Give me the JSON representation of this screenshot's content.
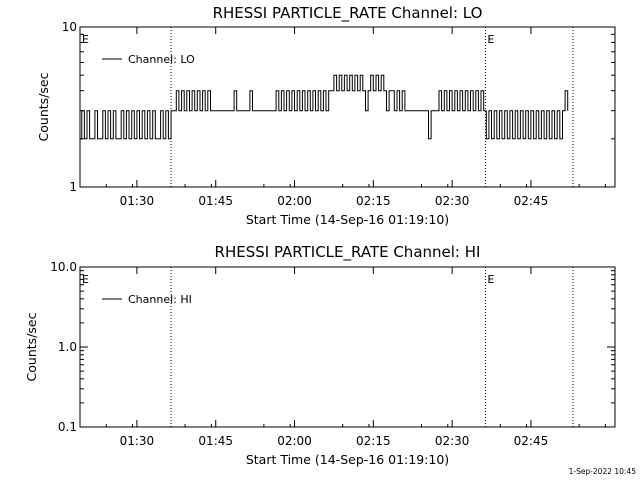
{
  "footer": {
    "timestamp": "1-Sep-2022 10:45"
  },
  "event_marker_label": "E",
  "chart_data": [
    {
      "type": "line",
      "title": "RHESSI PARTICLE_RATE Channel: LO",
      "xlabel": "Start Time (14-Sep-16 01:19:10)",
      "ylabel": "Counts/sec",
      "y_scale": "log",
      "xlim": [
        "01:19:10",
        "03:01:00"
      ],
      "ylim": [
        1,
        10
      ],
      "xticks": [
        "01:30",
        "01:45",
        "02:00",
        "02:15",
        "02:30",
        "02:45"
      ],
      "yticks": [
        {
          "value": 1,
          "label": "1"
        },
        {
          "value": 10,
          "label": "10"
        }
      ],
      "event_markers": [
        "01:36:30",
        "02:36:20",
        "02:53:00"
      ],
      "legend": {
        "position": "top-left",
        "entries": [
          "Channel: LO"
        ]
      },
      "series": [
        {
          "name": "Channel: LO",
          "points": [
            [
              "01:19:10",
              2
            ],
            [
              "01:19:30",
              3
            ],
            [
              "01:20:00",
              2
            ],
            [
              "01:20:30",
              3
            ],
            [
              "01:21:00",
              2
            ],
            [
              "01:21:30",
              2
            ],
            [
              "01:22:00",
              3
            ],
            [
              "01:22:30",
              2
            ],
            [
              "01:23:00",
              2
            ],
            [
              "01:23:30",
              3
            ],
            [
              "01:24:00",
              2
            ],
            [
              "01:24:30",
              3
            ],
            [
              "01:25:00",
              2
            ],
            [
              "01:25:30",
              3
            ],
            [
              "01:26:00",
              2
            ],
            [
              "01:26:30",
              2
            ],
            [
              "01:27:00",
              3
            ],
            [
              "01:27:30",
              2
            ],
            [
              "01:28:00",
              3
            ],
            [
              "01:28:30",
              2
            ],
            [
              "01:29:00",
              3
            ],
            [
              "01:29:30",
              2
            ],
            [
              "01:30:00",
              3
            ],
            [
              "01:30:30",
              2
            ],
            [
              "01:31:00",
              3
            ],
            [
              "01:31:30",
              2
            ],
            [
              "01:32:00",
              3
            ],
            [
              "01:32:30",
              2
            ],
            [
              "01:33:00",
              3
            ],
            [
              "01:33:30",
              2
            ],
            [
              "01:34:00",
              2
            ],
            [
              "01:34:30",
              3
            ],
            [
              "01:35:00",
              2
            ],
            [
              "01:35:30",
              3
            ],
            [
              "01:36:00",
              2
            ],
            [
              "01:36:30",
              3
            ],
            [
              "01:37:00",
              3
            ],
            [
              "01:37:30",
              4
            ],
            [
              "01:38:00",
              3
            ],
            [
              "01:38:30",
              4
            ],
            [
              "01:39:00",
              3
            ],
            [
              "01:39:30",
              4
            ],
            [
              "01:40:00",
              3
            ],
            [
              "01:40:30",
              4
            ],
            [
              "01:41:00",
              3
            ],
            [
              "01:41:30",
              4
            ],
            [
              "01:42:00",
              3
            ],
            [
              "01:42:30",
              4
            ],
            [
              "01:43:00",
              3
            ],
            [
              "01:43:30",
              4
            ],
            [
              "01:44:00",
              3
            ],
            [
              "01:45:00",
              3
            ],
            [
              "01:46:00",
              3
            ],
            [
              "01:47:00",
              3
            ],
            [
              "01:48:00",
              3
            ],
            [
              "01:48:30",
              4
            ],
            [
              "01:49:00",
              3
            ],
            [
              "01:50:00",
              3
            ],
            [
              "01:51:00",
              3
            ],
            [
              "01:51:30",
              4
            ],
            [
              "01:52:00",
              3
            ],
            [
              "01:53:00",
              3
            ],
            [
              "01:54:00",
              3
            ],
            [
              "01:55:00",
              3
            ],
            [
              "01:56:00",
              3
            ],
            [
              "01:56:30",
              4
            ],
            [
              "01:57:00",
              3
            ],
            [
              "01:57:30",
              4
            ],
            [
              "01:58:00",
              3
            ],
            [
              "01:58:30",
              4
            ],
            [
              "01:59:00",
              3
            ],
            [
              "01:59:30",
              4
            ],
            [
              "02:00:00",
              3
            ],
            [
              "02:00:30",
              4
            ],
            [
              "02:01:00",
              3
            ],
            [
              "02:01:30",
              4
            ],
            [
              "02:02:00",
              3
            ],
            [
              "02:02:30",
              4
            ],
            [
              "02:03:00",
              3
            ],
            [
              "02:03:30",
              4
            ],
            [
              "02:04:00",
              3
            ],
            [
              "02:04:30",
              4
            ],
            [
              "02:05:00",
              3
            ],
            [
              "02:05:30",
              4
            ],
            [
              "02:06:00",
              3
            ],
            [
              "02:06:30",
              4
            ],
            [
              "02:07:00",
              4
            ],
            [
              "02:07:30",
              5
            ],
            [
              "02:08:00",
              4
            ],
            [
              "02:08:30",
              5
            ],
            [
              "02:09:00",
              4
            ],
            [
              "02:09:30",
              5
            ],
            [
              "02:10:00",
              4
            ],
            [
              "02:10:30",
              5
            ],
            [
              "02:11:00",
              4
            ],
            [
              "02:11:30",
              5
            ],
            [
              "02:12:00",
              4
            ],
            [
              "02:12:30",
              5
            ],
            [
              "02:13:00",
              4
            ],
            [
              "02:13:30",
              3
            ],
            [
              "02:14:00",
              4
            ],
            [
              "02:14:30",
              5
            ],
            [
              "02:15:00",
              4
            ],
            [
              "02:15:30",
              5
            ],
            [
              "02:16:00",
              4
            ],
            [
              "02:16:30",
              5
            ],
            [
              "02:17:00",
              4
            ],
            [
              "02:17:30",
              3
            ],
            [
              "02:18:00",
              4
            ],
            [
              "02:18:30",
              4
            ],
            [
              "02:19:00",
              3
            ],
            [
              "02:19:30",
              4
            ],
            [
              "02:20:00",
              3
            ],
            [
              "02:20:30",
              4
            ],
            [
              "02:21:00",
              3
            ],
            [
              "02:22:00",
              3
            ],
            [
              "02:23:00",
              3
            ],
            [
              "02:24:00",
              3
            ],
            [
              "02:25:00",
              3
            ],
            [
              "02:25:30",
              2
            ],
            [
              "02:26:00",
              3
            ],
            [
              "02:27:00",
              3
            ],
            [
              "02:27:30",
              4
            ],
            [
              "02:28:00",
              3
            ],
            [
              "02:28:30",
              4
            ],
            [
              "02:29:00",
              3
            ],
            [
              "02:29:30",
              4
            ],
            [
              "02:30:00",
              3
            ],
            [
              "02:30:30",
              4
            ],
            [
              "02:31:00",
              3
            ],
            [
              "02:31:30",
              4
            ],
            [
              "02:32:00",
              3
            ],
            [
              "02:32:30",
              4
            ],
            [
              "02:33:00",
              3
            ],
            [
              "02:33:30",
              4
            ],
            [
              "02:34:00",
              3
            ],
            [
              "02:34:30",
              4
            ],
            [
              "02:35:00",
              3
            ],
            [
              "02:35:30",
              4
            ],
            [
              "02:36:00",
              3
            ],
            [
              "02:36:30",
              2
            ],
            [
              "02:37:00",
              3
            ],
            [
              "02:37:30",
              2
            ],
            [
              "02:38:00",
              3
            ],
            [
              "02:38:30",
              2
            ],
            [
              "02:39:00",
              3
            ],
            [
              "02:39:30",
              2
            ],
            [
              "02:40:00",
              3
            ],
            [
              "02:40:30",
              2
            ],
            [
              "02:41:00",
              3
            ],
            [
              "02:41:30",
              2
            ],
            [
              "02:42:00",
              3
            ],
            [
              "02:42:30",
              2
            ],
            [
              "02:43:00",
              3
            ],
            [
              "02:43:30",
              2
            ],
            [
              "02:44:00",
              3
            ],
            [
              "02:44:30",
              2
            ],
            [
              "02:45:00",
              3
            ],
            [
              "02:45:30",
              2
            ],
            [
              "02:46:00",
              3
            ],
            [
              "02:46:30",
              2
            ],
            [
              "02:47:00",
              3
            ],
            [
              "02:47:30",
              2
            ],
            [
              "02:48:00",
              3
            ],
            [
              "02:48:30",
              2
            ],
            [
              "02:49:00",
              3
            ],
            [
              "02:49:30",
              2
            ],
            [
              "02:50:00",
              3
            ],
            [
              "02:50:30",
              2
            ],
            [
              "02:51:00",
              3
            ],
            [
              "02:51:30",
              4
            ],
            [
              "02:52:00",
              3
            ]
          ]
        }
      ]
    },
    {
      "type": "line",
      "title": "RHESSI PARTICLE_RATE Channel: HI",
      "xlabel": "Start Time (14-Sep-16 01:19:10)",
      "ylabel": "Counts/sec",
      "y_scale": "log",
      "xlim": [
        "01:19:10",
        "03:01:00"
      ],
      "ylim": [
        0.1,
        10
      ],
      "xticks": [
        "01:30",
        "01:45",
        "02:00",
        "02:15",
        "02:30",
        "02:45"
      ],
      "yticks": [
        {
          "value": 0.1,
          "label": "0.1"
        },
        {
          "value": 1,
          "label": "1.0"
        },
        {
          "value": 10,
          "label": "10.0"
        }
      ],
      "event_markers": [
        "01:36:30",
        "02:36:20",
        "02:53:00"
      ],
      "legend": {
        "position": "top-left",
        "entries": [
          "Channel: HI"
        ]
      },
      "series": [
        {
          "name": "Channel: HI",
          "points": []
        }
      ]
    }
  ]
}
